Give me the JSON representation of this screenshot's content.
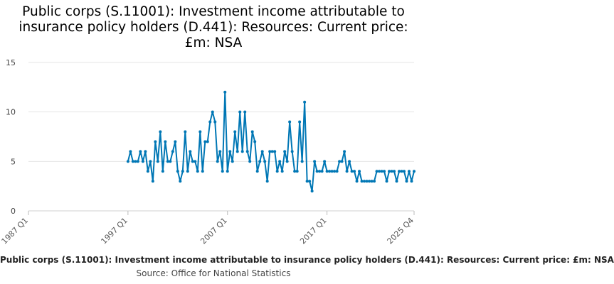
{
  "chart_data": {
    "type": "line",
    "title": "Public corps (S.11001): Investment income attributable to insurance policy holders (D.441): Resources: Current price: £m: NSA",
    "title_lines": [
      "Public corps (S.11001): Investment income attributable to",
      "insurance policy holders (D.441): Resources: Current price:",
      "£m: NSA"
    ],
    "xlabel": "",
    "ylabel": "",
    "ylim": [
      0,
      15
    ],
    "yticks": [
      0,
      5,
      10,
      15
    ],
    "ytick_labels": [
      "0",
      "5",
      "10",
      "15"
    ],
    "x_range": [
      1987,
      2025.75
    ],
    "xtick_values": [
      1987,
      1997,
      2007,
      2017,
      2025.75
    ],
    "xtick_labels": [
      "1987 Q1",
      "1997 Q1",
      "2007 Q1",
      "2017 Q1",
      "2025 Q4"
    ],
    "grid": true,
    "series": [
      {
        "name": "Public corps (S.11001): Investment income attributable to insurance policy holders (D.441): Resources: Current price: £m: NSA",
        "color": "#0077b5",
        "start": 1997,
        "step": 0.25,
        "values": [
          5,
          6,
          5,
          5,
          5,
          6,
          5,
          6,
          4,
          5,
          3,
          7,
          5,
          8,
          4,
          7,
          5,
          5,
          6,
          7,
          4,
          3,
          4,
          8,
          4,
          6,
          5,
          5,
          4,
          8,
          4,
          7,
          7,
          9,
          10,
          9,
          5,
          6,
          4,
          12,
          4,
          6,
          5,
          8,
          6,
          10,
          6,
          10,
          6,
          5,
          8,
          7,
          4,
          5,
          6,
          5,
          3,
          6,
          6,
          6,
          4,
          5,
          4,
          6,
          5,
          9,
          6,
          4,
          4,
          9,
          5,
          11,
          3,
          3,
          2,
          5,
          4,
          4,
          4,
          5,
          4,
          4,
          4,
          4,
          4,
          5,
          5,
          6,
          4,
          5,
          4,
          4,
          3,
          4,
          3,
          3,
          3,
          3,
          3,
          3,
          4,
          4,
          4,
          4,
          3,
          4,
          4,
          4,
          3,
          4,
          4,
          4,
          3,
          4,
          3,
          4
        ]
      }
    ]
  },
  "legend_text": "Public corps (S.11001): Investment income attributable to insurance policy holders (D.441): Resources: Current price: £m: NSA",
  "source_text": "Source: Office for National Statistics"
}
